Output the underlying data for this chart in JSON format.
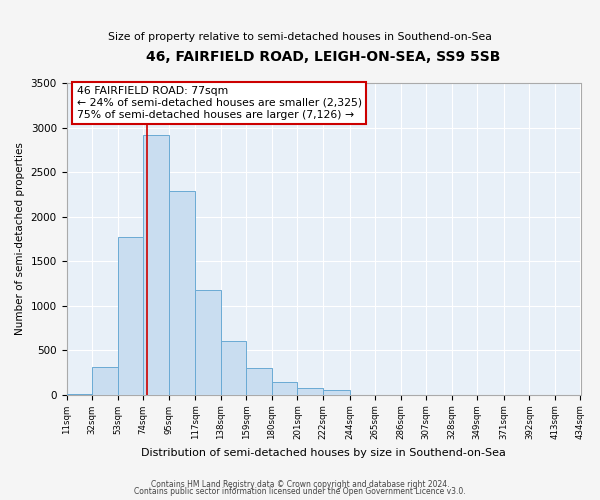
{
  "title": "46, FAIRFIELD ROAD, LEIGH-ON-SEA, SS9 5SB",
  "subtitle": "Size of property relative to semi-detached houses in Southend-on-Sea",
  "xlabel": "Distribution of semi-detached houses by size in Southend-on-Sea",
  "ylabel": "Number of semi-detached properties",
  "bin_edges": [
    11,
    32,
    53,
    74,
    95,
    117,
    138,
    159,
    180,
    201,
    222,
    244,
    265,
    286,
    307,
    328,
    349,
    371,
    392,
    413,
    434
  ],
  "bin_counts": [
    5,
    310,
    1770,
    2920,
    2290,
    1170,
    605,
    295,
    140,
    75,
    55,
    0,
    0,
    0,
    0,
    0,
    0,
    0,
    0,
    0
  ],
  "bar_color": "#c9ddf0",
  "bar_edge_color": "#6aaad4",
  "property_value": 77,
  "property_line_color": "#cc0000",
  "annotation_line1": "46 FAIRFIELD ROAD: 77sqm",
  "annotation_line2": "← 24% of semi-detached houses are smaller (2,325)",
  "annotation_line3": "75% of semi-detached houses are larger (7,126) →",
  "annotation_box_color": "#ffffff",
  "annotation_box_edge_color": "#cc0000",
  "ylim": [
    0,
    3500
  ],
  "yticks": [
    0,
    500,
    1000,
    1500,
    2000,
    2500,
    3000,
    3500
  ],
  "tick_labels": [
    "11sqm",
    "32sqm",
    "53sqm",
    "74sqm",
    "95sqm",
    "117sqm",
    "138sqm",
    "159sqm",
    "180sqm",
    "201sqm",
    "222sqm",
    "244sqm",
    "265sqm",
    "286sqm",
    "307sqm",
    "328sqm",
    "349sqm",
    "371sqm",
    "392sqm",
    "413sqm",
    "434sqm"
  ],
  "footer_line1": "Contains HM Land Registry data © Crown copyright and database right 2024.",
  "footer_line2": "Contains public sector information licensed under the Open Government Licence v3.0.",
  "plot_bg_color": "#e8f0f8",
  "fig_bg_color": "#f5f5f5",
  "grid_color": "#ffffff"
}
